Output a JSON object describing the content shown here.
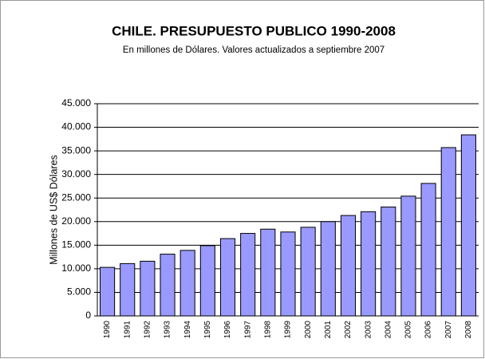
{
  "chart_data": {
    "type": "bar",
    "title": "CHILE. PRESUPUESTO PUBLICO 1990-2008",
    "subtitle": "En millones de Dólares. Valores actualizados a septiembre 2007",
    "y_label": "Millones de US$ Dólares",
    "categories": [
      "1990",
      "1991",
      "1992",
      "1993",
      "1994",
      "1995",
      "1996",
      "1997",
      "1998",
      "1999",
      "2000",
      "2001",
      "2002",
      "2003",
      "2004",
      "2005",
      "2006",
      "2007",
      "2008"
    ],
    "values": [
      10300,
      11100,
      11600,
      13100,
      13900,
      14900,
      16400,
      17500,
      18400,
      17800,
      18800,
      20000,
      21300,
      22100,
      23100,
      25400,
      28100,
      35700,
      38400
    ],
    "color": "#9999ff",
    "ylim": [
      0,
      45000
    ],
    "yticks": [
      0,
      {
        "value": 5000,
        "label": "5.000"
      },
      {
        "value": 10000,
        "label": "10.000"
      },
      {
        "value": 15000,
        "label": "15.000"
      },
      {
        "value": 20000,
        "label": "20.000"
      },
      {
        "value": 25000,
        "label": "25.000"
      },
      {
        "value": 30000,
        "label": "30.000"
      },
      {
        "value": 35000,
        "label": "35.000"
      },
      {
        "value": 40000,
        "label": "40.000"
      },
      {
        "value": 45000,
        "label": "45.000"
      }
    ],
    "grid": true
  }
}
